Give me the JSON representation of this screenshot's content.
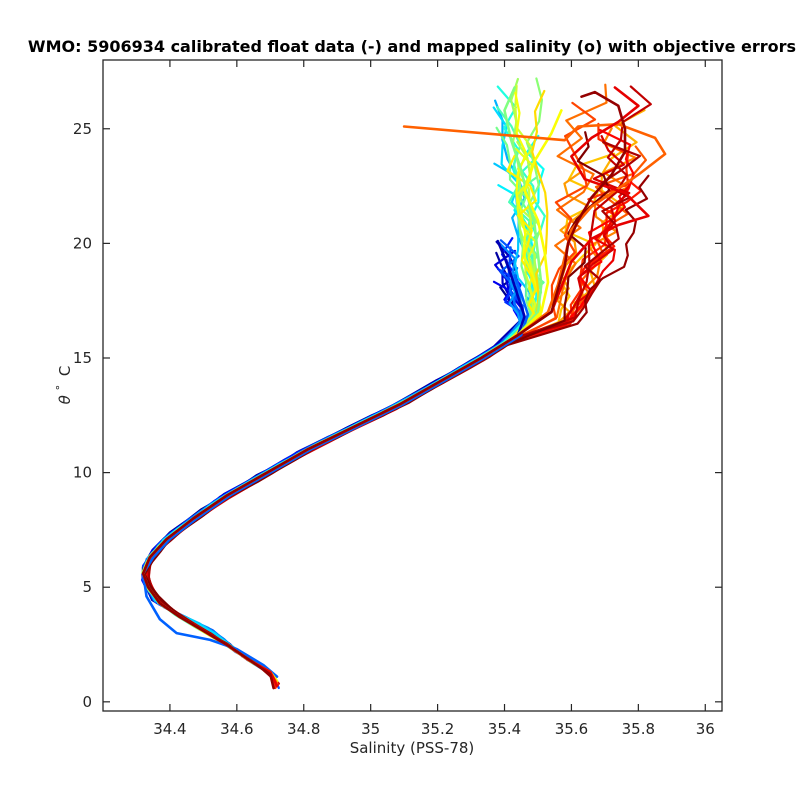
{
  "chart_data": {
    "type": "line",
    "title": "WMO: 5906934 calibrated float data (-) and mapped salinity (o) with objective errors",
    "xlabel": "Salinity (PSS-78)",
    "ylabel_parts": {
      "symbol": "θ",
      "degree": "°",
      "unit": "C"
    },
    "xlim": [
      34.2,
      36.05
    ],
    "ylim": [
      -0.4,
      28.0
    ],
    "x_ticks": [
      34.4,
      34.6,
      34.8,
      35,
      35.2,
      35.4,
      35.6,
      35.8,
      36
    ],
    "x_tick_labels": [
      "34.4",
      "34.6",
      "34.8",
      "35",
      "35.2",
      "35.4",
      "35.6",
      "35.8",
      "36"
    ],
    "y_ticks": [
      0,
      5,
      10,
      15,
      20,
      25
    ],
    "y_tick_labels": [
      "0",
      "5",
      "10",
      "15",
      "20",
      "25"
    ],
    "grid": false,
    "colormap": "jet",
    "colormap_stops": [
      "#00008f",
      "#0000ff",
      "#0080ff",
      "#00ffff",
      "#80ff80",
      "#ffff00",
      "#ff8000",
      "#ff0000",
      "#800000"
    ],
    "profile_count": 48,
    "deep_trunk": [
      [
        34.72,
        0.8
      ],
      [
        34.7,
        1.3
      ],
      [
        34.64,
        1.8
      ],
      [
        34.58,
        2.4
      ],
      [
        34.5,
        3.1
      ],
      [
        34.43,
        3.7
      ],
      [
        34.37,
        4.3
      ],
      [
        34.335,
        5.0
      ],
      [
        34.32,
        5.6
      ],
      [
        34.34,
        6.3
      ],
      [
        34.39,
        7.1
      ],
      [
        34.47,
        8.0
      ],
      [
        34.57,
        9.0
      ],
      [
        34.69,
        10.0
      ],
      [
        34.81,
        11.0
      ],
      [
        34.95,
        12.0
      ],
      [
        35.09,
        13.0
      ],
      [
        35.21,
        14.0
      ],
      [
        35.33,
        15.0
      ],
      [
        35.44,
        16.0
      ]
    ],
    "series": [
      {
        "colorscale_position": 0.04,
        "points": [
          [
            34.72,
            0.8
          ],
          [
            34.7,
            1.3
          ],
          [
            34.64,
            1.8
          ],
          [
            34.58,
            2.4
          ],
          [
            34.5,
            3.1
          ],
          [
            34.43,
            3.7
          ],
          [
            34.37,
            4.3
          ],
          [
            34.335,
            5.0
          ],
          [
            34.32,
            5.6
          ],
          [
            34.34,
            6.3
          ],
          [
            34.39,
            7.1
          ],
          [
            34.47,
            8.0
          ],
          [
            34.57,
            9.0
          ],
          [
            34.69,
            10.0
          ],
          [
            34.81,
            11.0
          ],
          [
            34.95,
            12.0
          ],
          [
            35.09,
            13.0
          ],
          [
            35.21,
            14.0
          ],
          [
            35.33,
            15.0
          ],
          [
            35.44,
            16.0
          ],
          [
            35.46,
            16.8
          ],
          [
            35.44,
            17.7
          ],
          [
            35.42,
            18.6
          ],
          [
            35.4,
            19.4
          ],
          [
            35.38,
            20.1
          ]
        ]
      },
      {
        "colorscale_position": 0.22,
        "points": [
          [
            34.72,
            1.1
          ],
          [
            34.68,
            1.6
          ],
          [
            34.6,
            2.3
          ],
          [
            34.52,
            2.7
          ],
          [
            34.42,
            3.0
          ],
          [
            34.37,
            3.6
          ],
          [
            34.33,
            4.6
          ],
          [
            34.32,
            5.6
          ],
          [
            34.35,
            6.3
          ],
          [
            34.4,
            7.1
          ],
          [
            34.48,
            8.0
          ],
          [
            34.58,
            9.0
          ],
          [
            34.7,
            10.0
          ],
          [
            34.82,
            11.0
          ],
          [
            34.96,
            12.0
          ],
          [
            35.1,
            13.0
          ],
          [
            35.22,
            14.0
          ],
          [
            35.34,
            15.0
          ],
          [
            35.45,
            16.0
          ],
          [
            35.47,
            16.9
          ],
          [
            35.45,
            17.8
          ],
          [
            35.43,
            18.6
          ]
        ]
      },
      {
        "colorscale_position": 0.5,
        "points": [
          [
            34.72,
            0.9
          ],
          [
            34.7,
            1.3
          ],
          [
            34.64,
            1.8
          ],
          [
            34.58,
            2.4
          ],
          [
            34.5,
            3.1
          ],
          [
            34.43,
            3.7
          ],
          [
            34.37,
            4.3
          ],
          [
            34.335,
            5.0
          ],
          [
            34.32,
            5.6
          ],
          [
            34.34,
            6.3
          ],
          [
            34.39,
            7.1
          ],
          [
            34.47,
            8.0
          ],
          [
            34.57,
            9.0
          ],
          [
            34.69,
            10.0
          ],
          [
            34.81,
            11.0
          ],
          [
            34.95,
            12.0
          ],
          [
            35.09,
            13.0
          ],
          [
            35.21,
            14.0
          ],
          [
            35.33,
            15.0
          ],
          [
            35.44,
            16.0
          ],
          [
            35.5,
            17.0
          ],
          [
            35.51,
            18.2
          ],
          [
            35.5,
            19.5
          ],
          [
            35.49,
            20.8
          ],
          [
            35.47,
            22.0
          ],
          [
            35.45,
            23.2
          ],
          [
            35.42,
            24.5
          ],
          [
            35.4,
            25.8
          ],
          [
            35.43,
            26.8
          ]
        ]
      },
      {
        "colorscale_position": 0.62,
        "points": [
          [
            34.72,
            0.9
          ],
          [
            34.7,
            1.3
          ],
          [
            34.64,
            1.8
          ],
          [
            34.58,
            2.4
          ],
          [
            34.5,
            3.1
          ],
          [
            34.43,
            3.7
          ],
          [
            34.37,
            4.3
          ],
          [
            34.335,
            5.0
          ],
          [
            34.32,
            5.6
          ],
          [
            34.34,
            6.3
          ],
          [
            34.39,
            7.1
          ],
          [
            34.47,
            8.0
          ],
          [
            34.57,
            9.0
          ],
          [
            34.69,
            10.0
          ],
          [
            34.81,
            11.0
          ],
          [
            34.95,
            12.0
          ],
          [
            35.09,
            13.0
          ],
          [
            35.21,
            14.0
          ],
          [
            35.33,
            15.0
          ],
          [
            35.44,
            16.0
          ],
          [
            35.51,
            17.0
          ],
          [
            35.53,
            18.3
          ],
          [
            35.52,
            19.6
          ],
          [
            35.5,
            21.0
          ],
          [
            35.46,
            22.3
          ],
          [
            35.49,
            23.6
          ],
          [
            35.54,
            24.8
          ],
          [
            35.57,
            25.8
          ]
        ]
      },
      {
        "colorscale_position": 0.78,
        "points": [
          [
            34.72,
            0.8
          ],
          [
            34.7,
            1.3
          ],
          [
            34.64,
            1.8
          ],
          [
            34.58,
            2.4
          ],
          [
            34.5,
            3.1
          ],
          [
            34.43,
            3.7
          ],
          [
            34.37,
            4.3
          ],
          [
            34.335,
            5.0
          ],
          [
            34.32,
            5.6
          ],
          [
            34.34,
            6.3
          ],
          [
            34.39,
            7.1
          ],
          [
            34.47,
            8.0
          ],
          [
            34.57,
            9.0
          ],
          [
            34.69,
            10.0
          ],
          [
            34.81,
            11.0
          ],
          [
            34.95,
            12.0
          ],
          [
            35.09,
            13.0
          ],
          [
            35.21,
            14.0
          ],
          [
            35.33,
            15.0
          ],
          [
            35.44,
            16.0
          ],
          [
            35.53,
            17.0
          ],
          [
            35.56,
            18.2
          ],
          [
            35.58,
            19.4
          ],
          [
            35.6,
            20.6
          ],
          [
            35.66,
            21.6
          ],
          [
            35.74,
            22.4
          ],
          [
            35.8,
            23.0
          ],
          [
            35.88,
            23.9
          ],
          [
            35.85,
            24.6
          ],
          [
            35.74,
            25.2
          ],
          [
            35.62,
            25.1
          ],
          [
            35.58,
            24.5
          ],
          [
            35.1,
            25.1
          ]
        ]
      },
      {
        "colorscale_position": 0.9,
        "points": [
          [
            34.72,
            0.7
          ],
          [
            34.7,
            1.3
          ],
          [
            34.64,
            1.8
          ],
          [
            34.58,
            2.4
          ],
          [
            34.5,
            3.1
          ],
          [
            34.43,
            3.7
          ],
          [
            34.37,
            4.3
          ],
          [
            34.335,
            5.0
          ],
          [
            34.32,
            5.6
          ],
          [
            34.34,
            6.3
          ],
          [
            34.39,
            7.1
          ],
          [
            34.47,
            8.0
          ],
          [
            34.57,
            9.0
          ],
          [
            34.69,
            10.0
          ],
          [
            34.81,
            11.0
          ],
          [
            34.95,
            12.0
          ],
          [
            35.09,
            13.0
          ],
          [
            35.21,
            14.0
          ],
          [
            35.33,
            15.0
          ],
          [
            35.44,
            16.0
          ],
          [
            35.54,
            17.0
          ],
          [
            35.57,
            18.1
          ],
          [
            35.6,
            19.2
          ],
          [
            35.66,
            20.2
          ],
          [
            35.74,
            20.8
          ],
          [
            35.83,
            21.2
          ],
          [
            35.76,
            22.2
          ],
          [
            35.64,
            22.8
          ],
          [
            35.6,
            23.8
          ],
          [
            35.66,
            24.6
          ],
          [
            35.74,
            25.3
          ],
          [
            35.8,
            26.0
          ],
          [
            35.73,
            26.8
          ]
        ]
      },
      {
        "colorscale_position": 0.98,
        "points": [
          [
            34.71,
            0.6
          ],
          [
            34.7,
            1.2
          ],
          [
            34.64,
            1.8
          ],
          [
            34.58,
            2.4
          ],
          [
            34.5,
            3.1
          ],
          [
            34.43,
            3.7
          ],
          [
            34.37,
            4.3
          ],
          [
            34.335,
            5.0
          ],
          [
            34.32,
            5.6
          ],
          [
            34.34,
            6.3
          ],
          [
            34.39,
            7.1
          ],
          [
            34.47,
            8.0
          ],
          [
            34.57,
            9.0
          ],
          [
            34.69,
            10.0
          ],
          [
            34.81,
            11.0
          ],
          [
            34.95,
            12.0
          ],
          [
            35.09,
            13.0
          ],
          [
            35.21,
            14.0
          ],
          [
            35.33,
            15.0
          ],
          [
            35.44,
            16.0
          ],
          [
            35.54,
            17.0
          ],
          [
            35.56,
            18.0
          ],
          [
            35.58,
            19.0
          ],
          [
            35.59,
            20.0
          ],
          [
            35.62,
            21.0
          ],
          [
            35.66,
            22.0
          ],
          [
            35.72,
            23.0
          ],
          [
            35.76,
            24.0
          ],
          [
            35.76,
            25.0
          ],
          [
            35.74,
            26.0
          ],
          [
            35.67,
            26.6
          ],
          [
            35.63,
            26.4
          ]
        ]
      }
    ]
  }
}
